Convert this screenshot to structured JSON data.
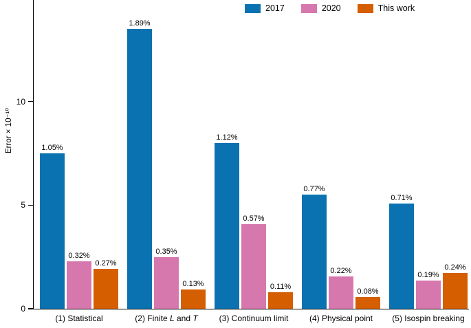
{
  "chart_data": {
    "type": "bar",
    "title": "",
    "xlabel": "",
    "ylabel": "Error × 10⁻¹⁰",
    "ylim": [
      0,
      14.9
    ],
    "yticks": [
      0,
      5,
      10
    ],
    "ytick_labels": [
      "0",
      "5",
      "10"
    ],
    "grid": false,
    "legend_position": "top",
    "categories": [
      "(1) Statistical",
      "(2) Finite *L* and *T*",
      "(3) Continuum limit",
      "(4) Physical point",
      "(5) Isospin breaking"
    ],
    "series": [
      {
        "name": "2017",
        "color": "#0b72b2",
        "values": [
          7.5,
          13.5,
          8.0,
          5.5,
          5.07
        ],
        "labels": [
          "1.05%",
          "1.89%",
          "1.12%",
          "0.77%",
          "0.71%"
        ]
      },
      {
        "name": "2020",
        "color": "#d678ae",
        "values": [
          2.29,
          2.5,
          4.07,
          1.57,
          1.36
        ],
        "labels": [
          "0.32%",
          "0.35%",
          "0.57%",
          "0.22%",
          "0.19%"
        ]
      },
      {
        "name": "This work",
        "color": "#d55e00",
        "values": [
          1.93,
          0.93,
          0.79,
          0.57,
          1.71
        ],
        "labels": [
          "0.27%",
          "0.13%",
          "0.11%",
          "0.08%",
          "0.24%"
        ]
      }
    ]
  }
}
